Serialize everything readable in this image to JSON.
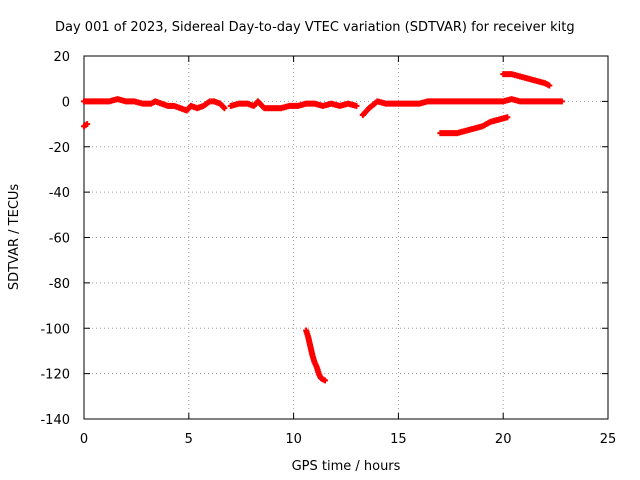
{
  "chart_data": {
    "type": "scatter",
    "title": "Day 001 of 2023, Sidereal Day-to-day VTEC variation (SDTVAR) for receiver kitg",
    "xlabel": "GPS time / hours",
    "ylabel": "SDTVAR / TECUs",
    "xlim": [
      0,
      25
    ],
    "ylim": [
      -140,
      20
    ],
    "xticks": [
      0,
      5,
      10,
      15,
      20,
      25
    ],
    "yticks": [
      20,
      0,
      -20,
      -40,
      -60,
      -80,
      -100,
      -120,
      -140
    ],
    "grid": true,
    "marker": "plus",
    "color": "#ff0000",
    "series": [
      {
        "x": [
          0.0,
          0.3,
          0.6,
          0.9,
          1.2,
          1.6,
          2.0,
          2.4,
          2.8,
          3.2,
          3.4,
          3.7,
          4.0,
          4.3,
          4.6,
          4.9,
          5.1,
          5.4,
          5.7,
          6.0,
          6.2,
          6.5,
          6.7
        ],
        "y": [
          0,
          0,
          0,
          0,
          0,
          1,
          0,
          0,
          -1,
          -1,
          0,
          -1,
          -2,
          -2,
          -3,
          -4,
          -2,
          -3,
          -2,
          0,
          0,
          -1,
          -3
        ]
      },
      {
        "x": [
          7.0,
          7.4,
          7.8,
          8.1,
          8.3,
          8.6,
          9.0,
          9.4,
          9.8,
          10.2,
          10.6,
          11.0,
          11.4,
          11.8,
          12.2,
          12.6,
          13.0
        ],
        "y": [
          -2,
          -1,
          -1,
          -2,
          0,
          -3,
          -3,
          -3,
          -2,
          -2,
          -1,
          -1,
          -2,
          -1,
          -2,
          -1,
          -2
        ]
      },
      {
        "x": [
          13.3,
          13.6,
          14.0,
          14.4,
          14.8,
          15.2,
          15.6,
          16.0,
          16.4,
          16.8,
          17.2,
          17.6,
          18.0,
          18.4,
          18.8,
          19.2,
          19.6,
          20.0,
          20.4,
          20.8,
          21.2,
          21.6,
          22.0,
          22.4,
          22.8
        ],
        "y": [
          -6,
          -3,
          0,
          -1,
          -1,
          -1,
          -1,
          -1,
          0,
          0,
          0,
          0,
          0,
          0,
          0,
          0,
          0,
          0,
          1,
          0,
          0,
          0,
          0,
          0,
          0
        ]
      },
      {
        "x": [
          0.0,
          0.15
        ],
        "y": [
          -11,
          -10
        ]
      },
      {
        "x": [
          20.0,
          20.4,
          20.8,
          21.2,
          21.6,
          22.0,
          22.2
        ],
        "y": [
          12,
          12,
          11,
          10,
          9,
          8,
          7
        ]
      },
      {
        "x": [
          17.0,
          17.4,
          17.8,
          18.2,
          18.6,
          19.0,
          19.4,
          19.8,
          20.2
        ],
        "y": [
          -14,
          -14,
          -14,
          -13,
          -12,
          -11,
          -9,
          -8,
          -7
        ]
      },
      {
        "x": [
          10.6,
          10.7,
          10.8,
          10.9,
          11.0,
          11.1,
          11.2,
          11.3,
          11.5
        ],
        "y": [
          -101,
          -104,
          -108,
          -112,
          -115,
          -117,
          -120,
          -122,
          -123
        ]
      }
    ]
  }
}
